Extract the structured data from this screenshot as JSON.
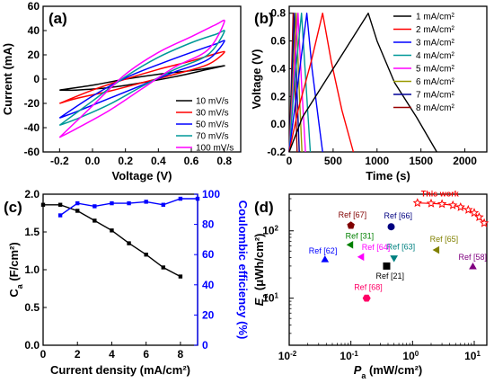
{
  "chart_data": [
    {
      "id": "a",
      "type": "line",
      "panel_label": "(a)",
      "xlabel": "Voltage (V)",
      "ylabel": "Current (mA)",
      "xlim": [
        -0.3,
        0.9
      ],
      "ylim": [
        -60,
        60
      ],
      "xticks": [
        -0.2,
        0.0,
        0.2,
        0.4,
        0.6,
        0.8
      ],
      "xtick_labels": [
        "-0.2",
        "0.0",
        "0.2",
        "0.4",
        "0.6",
        "0.8"
      ],
      "yticks": [
        -60,
        -40,
        -20,
        0,
        20,
        40,
        60
      ],
      "legend": "bottom-right",
      "series": [
        {
          "name": "10 mV/s",
          "color": "#000000",
          "top": [
            [
              -0.2,
              -9
            ],
            [
              0.0,
              -5
            ],
            [
              0.2,
              0
            ],
            [
              0.4,
              4
            ],
            [
              0.6,
              7
            ],
            [
              0.75,
              10
            ],
            [
              0.8,
              11
            ]
          ],
          "bottom": [
            [
              0.8,
              9
            ],
            [
              0.7,
              8
            ],
            [
              0.5,
              2
            ],
            [
              0.3,
              -3
            ],
            [
              0.1,
              -7
            ],
            [
              -0.1,
              -9
            ],
            [
              -0.2,
              -9
            ]
          ]
        },
        {
          "name": "30 mV/s",
          "color": "#ff0000",
          "top": [
            [
              -0.2,
              -20
            ],
            [
              0.0,
              -9
            ],
            [
              0.2,
              0
            ],
            [
              0.4,
              8
            ],
            [
              0.6,
              15
            ],
            [
              0.75,
              21
            ],
            [
              0.8,
              22
            ]
          ],
          "bottom": [
            [
              0.8,
              16
            ],
            [
              0.7,
              12
            ],
            [
              0.5,
              4
            ],
            [
              0.3,
              -3
            ],
            [
              0.1,
              -10
            ],
            [
              -0.1,
              -16
            ],
            [
              -0.2,
              -20
            ]
          ]
        },
        {
          "name": "50 mV/s",
          "color": "#0000ff",
          "top": [
            [
              -0.2,
              -32
            ],
            [
              0.0,
              -14
            ],
            [
              0.2,
              1
            ],
            [
              0.4,
              12
            ],
            [
              0.6,
              22
            ],
            [
              0.75,
              29
            ],
            [
              0.8,
              31
            ]
          ],
          "bottom": [
            [
              0.8,
              20
            ],
            [
              0.7,
              16
            ],
            [
              0.5,
              6
            ],
            [
              0.3,
              -5
            ],
            [
              0.1,
              -16
            ],
            [
              -0.1,
              -27
            ],
            [
              -0.2,
              -32
            ]
          ]
        },
        {
          "name": "70 mV/s",
          "color": "#009999",
          "top": [
            [
              -0.2,
              -38
            ],
            [
              0.0,
              -18
            ],
            [
              0.2,
              2
            ],
            [
              0.4,
              18
            ],
            [
              0.6,
              30
            ],
            [
              0.75,
              37
            ],
            [
              0.8,
              39
            ]
          ],
          "bottom": [
            [
              0.8,
              26
            ],
            [
              0.7,
              20
            ],
            [
              0.5,
              8
            ],
            [
              0.3,
              -6
            ],
            [
              0.1,
              -21
            ],
            [
              -0.1,
              -33
            ],
            [
              -0.2,
              -38
            ]
          ]
        },
        {
          "name": "100 mV/s",
          "color": "#ff00ff",
          "top": [
            [
              -0.2,
              -48
            ],
            [
              0.0,
              -22
            ],
            [
              0.2,
              4
            ],
            [
              0.4,
              22
            ],
            [
              0.6,
              35
            ],
            [
              0.75,
              45
            ],
            [
              0.8,
              47
            ]
          ],
          "bottom": [
            [
              0.8,
              30
            ],
            [
              0.7,
              24
            ],
            [
              0.5,
              10
            ],
            [
              0.3,
              -8
            ],
            [
              0.1,
              -26
            ],
            [
              -0.1,
              -41
            ],
            [
              -0.2,
              -48
            ]
          ]
        }
      ]
    },
    {
      "id": "b",
      "type": "line",
      "panel_label": "(b)",
      "xlabel": "Time (s)",
      "ylabel": "Voltage (V)",
      "xlim": [
        0,
        2250
      ],
      "ylim": [
        -0.2,
        0.85
      ],
      "xticks": [
        0,
        500,
        1000,
        1500,
        2000
      ],
      "yticks": [
        -0.2,
        0.0,
        0.2,
        0.4,
        0.6,
        0.8
      ],
      "ytick_labels": [
        "-0.2",
        "0.0",
        "0.2",
        "0.4",
        "0.6",
        "0.8"
      ],
      "legend": "top-right",
      "series": [
        {
          "name": "1 mA/cm²",
          "color": "#000000",
          "points": [
            [
              0,
              -0.2
            ],
            [
              150,
              0.05
            ],
            [
              400,
              0.3
            ],
            [
              650,
              0.55
            ],
            [
              900,
              0.8
            ],
            [
              1000,
              0.6
            ],
            [
              1200,
              0.3
            ],
            [
              1450,
              0.05
            ],
            [
              1680,
              -0.2
            ]
          ]
        },
        {
          "name": "2 mA/cm²",
          "color": "#ff0000",
          "points": [
            [
              0,
              -0.2
            ],
            [
              100,
              0.1
            ],
            [
              250,
              0.45
            ],
            [
              380,
              0.8
            ],
            [
              480,
              0.45
            ],
            [
              600,
              0.1
            ],
            [
              730,
              -0.2
            ]
          ]
        },
        {
          "name": "3 mA/cm²",
          "color": "#0000ff",
          "points": [
            [
              0,
              -0.2
            ],
            [
              80,
              0.2
            ],
            [
              200,
              0.8
            ],
            [
              260,
              0.4
            ],
            [
              340,
              0.0
            ],
            [
              380,
              -0.2
            ]
          ]
        },
        {
          "name": "4 mA/cm²",
          "color": "#009999",
          "points": [
            [
              0,
              -0.2
            ],
            [
              60,
              0.3
            ],
            [
              140,
              0.8
            ],
            [
              180,
              0.4
            ],
            [
              240,
              -0.2
            ]
          ]
        },
        {
          "name": "5 mA/cm²",
          "color": "#ff00ff",
          "points": [
            [
              0,
              -0.2
            ],
            [
              50,
              0.3
            ],
            [
              100,
              0.8
            ],
            [
              140,
              0.3
            ],
            [
              185,
              -0.2
            ]
          ]
        },
        {
          "name": "6 mA/cm²",
          "color": "#999900",
          "points": [
            [
              0,
              -0.2
            ],
            [
              40,
              0.3
            ],
            [
              80,
              0.8
            ],
            [
              110,
              0.3
            ],
            [
              145,
              -0.2
            ]
          ]
        },
        {
          "name": "7 mA/cm²",
          "color": "#000099",
          "points": [
            [
              0,
              -0.2
            ],
            [
              30,
              0.3
            ],
            [
              60,
              0.8
            ],
            [
              85,
              0.3
            ],
            [
              115,
              -0.2
            ]
          ]
        },
        {
          "name": "8 mA/cm²",
          "color": "#990000",
          "points": [
            [
              0,
              -0.2
            ],
            [
              25,
              0.3
            ],
            [
              45,
              0.8
            ],
            [
              65,
              0.3
            ],
            [
              90,
              -0.2
            ]
          ]
        }
      ]
    },
    {
      "id": "c",
      "type": "line",
      "panel_label": "(c)",
      "xlabel": "Current density (mA/cm²)",
      "ylabel": "C_a (F/cm²)",
      "ylabel_main": "C",
      "ylabel_sub": "a",
      "ylabel_rest": " (F/cm²)",
      "y2label": "Coulombic efficiency (%)",
      "xlim": [
        0,
        9
      ],
      "ylim": [
        0.0,
        2.0
      ],
      "y2lim": [
        0,
        100
      ],
      "xticks": [
        0,
        2,
        4,
        6,
        8
      ],
      "yticks": [
        0.0,
        0.5,
        1.0,
        1.5,
        2.0
      ],
      "ytick_labels": [
        "0.0",
        "0.5",
        "1.0",
        "1.5",
        "2.0"
      ],
      "y2ticks": [
        0,
        20,
        40,
        60,
        80,
        100
      ],
      "series": [
        {
          "name": "Ca",
          "color": "#000000",
          "axis": "left",
          "marker": "square",
          "x": [
            0,
            1,
            2,
            3,
            4,
            5,
            6,
            7,
            8
          ],
          "values": [
            1.86,
            1.86,
            1.78,
            1.65,
            1.52,
            1.35,
            1.2,
            1.03,
            0.91
          ]
        },
        {
          "name": "Coulombic efficiency",
          "color": "#0000ff",
          "axis": "right",
          "marker": "square",
          "x": [
            1,
            2,
            3,
            4,
            5,
            6,
            7,
            8,
            9
          ],
          "values": [
            86,
            94,
            92,
            94,
            94,
            95,
            93,
            97,
            97
          ]
        }
      ]
    },
    {
      "id": "d",
      "type": "scatter",
      "panel_label": "(d)",
      "xlabel": "P_a (mW/cm²)",
      "xlabel_main": "P",
      "xlabel_sub": "a",
      "xlabel_rest": " (mW/cm²)",
      "ylabel": "E_a (μWh/cm²)",
      "ylabel_main": "E",
      "ylabel_sub": "a",
      "ylabel_rest": " (μWh/cm²)",
      "xscale": "log",
      "yscale": "log",
      "xlim": [
        0.01,
        16
      ],
      "ylim": [
        2,
        350
      ],
      "xtick_exponents": [
        -2,
        -1,
        0,
        1
      ],
      "ytick_exponents": [
        1,
        2
      ],
      "this_work": {
        "label": "This work",
        "color": "#ff0000",
        "x": [
          1.2,
          2.0,
          3.0,
          4.5,
          6.0,
          8.0,
          10.0,
          12.0,
          14.5
        ],
        "values": [
          260,
          255,
          250,
          240,
          225,
          205,
          185,
          160,
          130
        ]
      },
      "references": [
        {
          "label": "Ref [67]",
          "x": 0.1,
          "y": 120,
          "color": "#800000",
          "marker": "pentagon"
        },
        {
          "label": "Ref [66]",
          "x": 0.45,
          "y": 115,
          "color": "#000080",
          "marker": "circle"
        },
        {
          "label": "Ref [31]",
          "x": 0.1,
          "y": 62,
          "color": "#008000",
          "marker": "triangle-left"
        },
        {
          "label": "Ref [62]",
          "x": 0.038,
          "y": 37,
          "color": "#0000ff",
          "marker": "triangle-up"
        },
        {
          "label": "Ref [63]",
          "x": 0.5,
          "y": 40,
          "color": "#008080",
          "marker": "triangle-down"
        },
        {
          "label": "Ref [64]",
          "x": 0.15,
          "y": 41,
          "color": "#ff00ff",
          "marker": "triangle-left"
        },
        {
          "label": "Ref [21]",
          "x": 0.38,
          "y": 30,
          "color": "#000000",
          "marker": "square"
        },
        {
          "label": "Ref [65]",
          "x": 2.5,
          "y": 52,
          "color": "#808000",
          "marker": "triangle-left"
        },
        {
          "label": "Ref [58]",
          "x": 9.5,
          "y": 29,
          "color": "#800080",
          "marker": "triangle-up"
        },
        {
          "label": "Ref [68]",
          "x": 0.18,
          "y": 10,
          "color": "#ff0066",
          "marker": "hexagon"
        }
      ]
    }
  ]
}
